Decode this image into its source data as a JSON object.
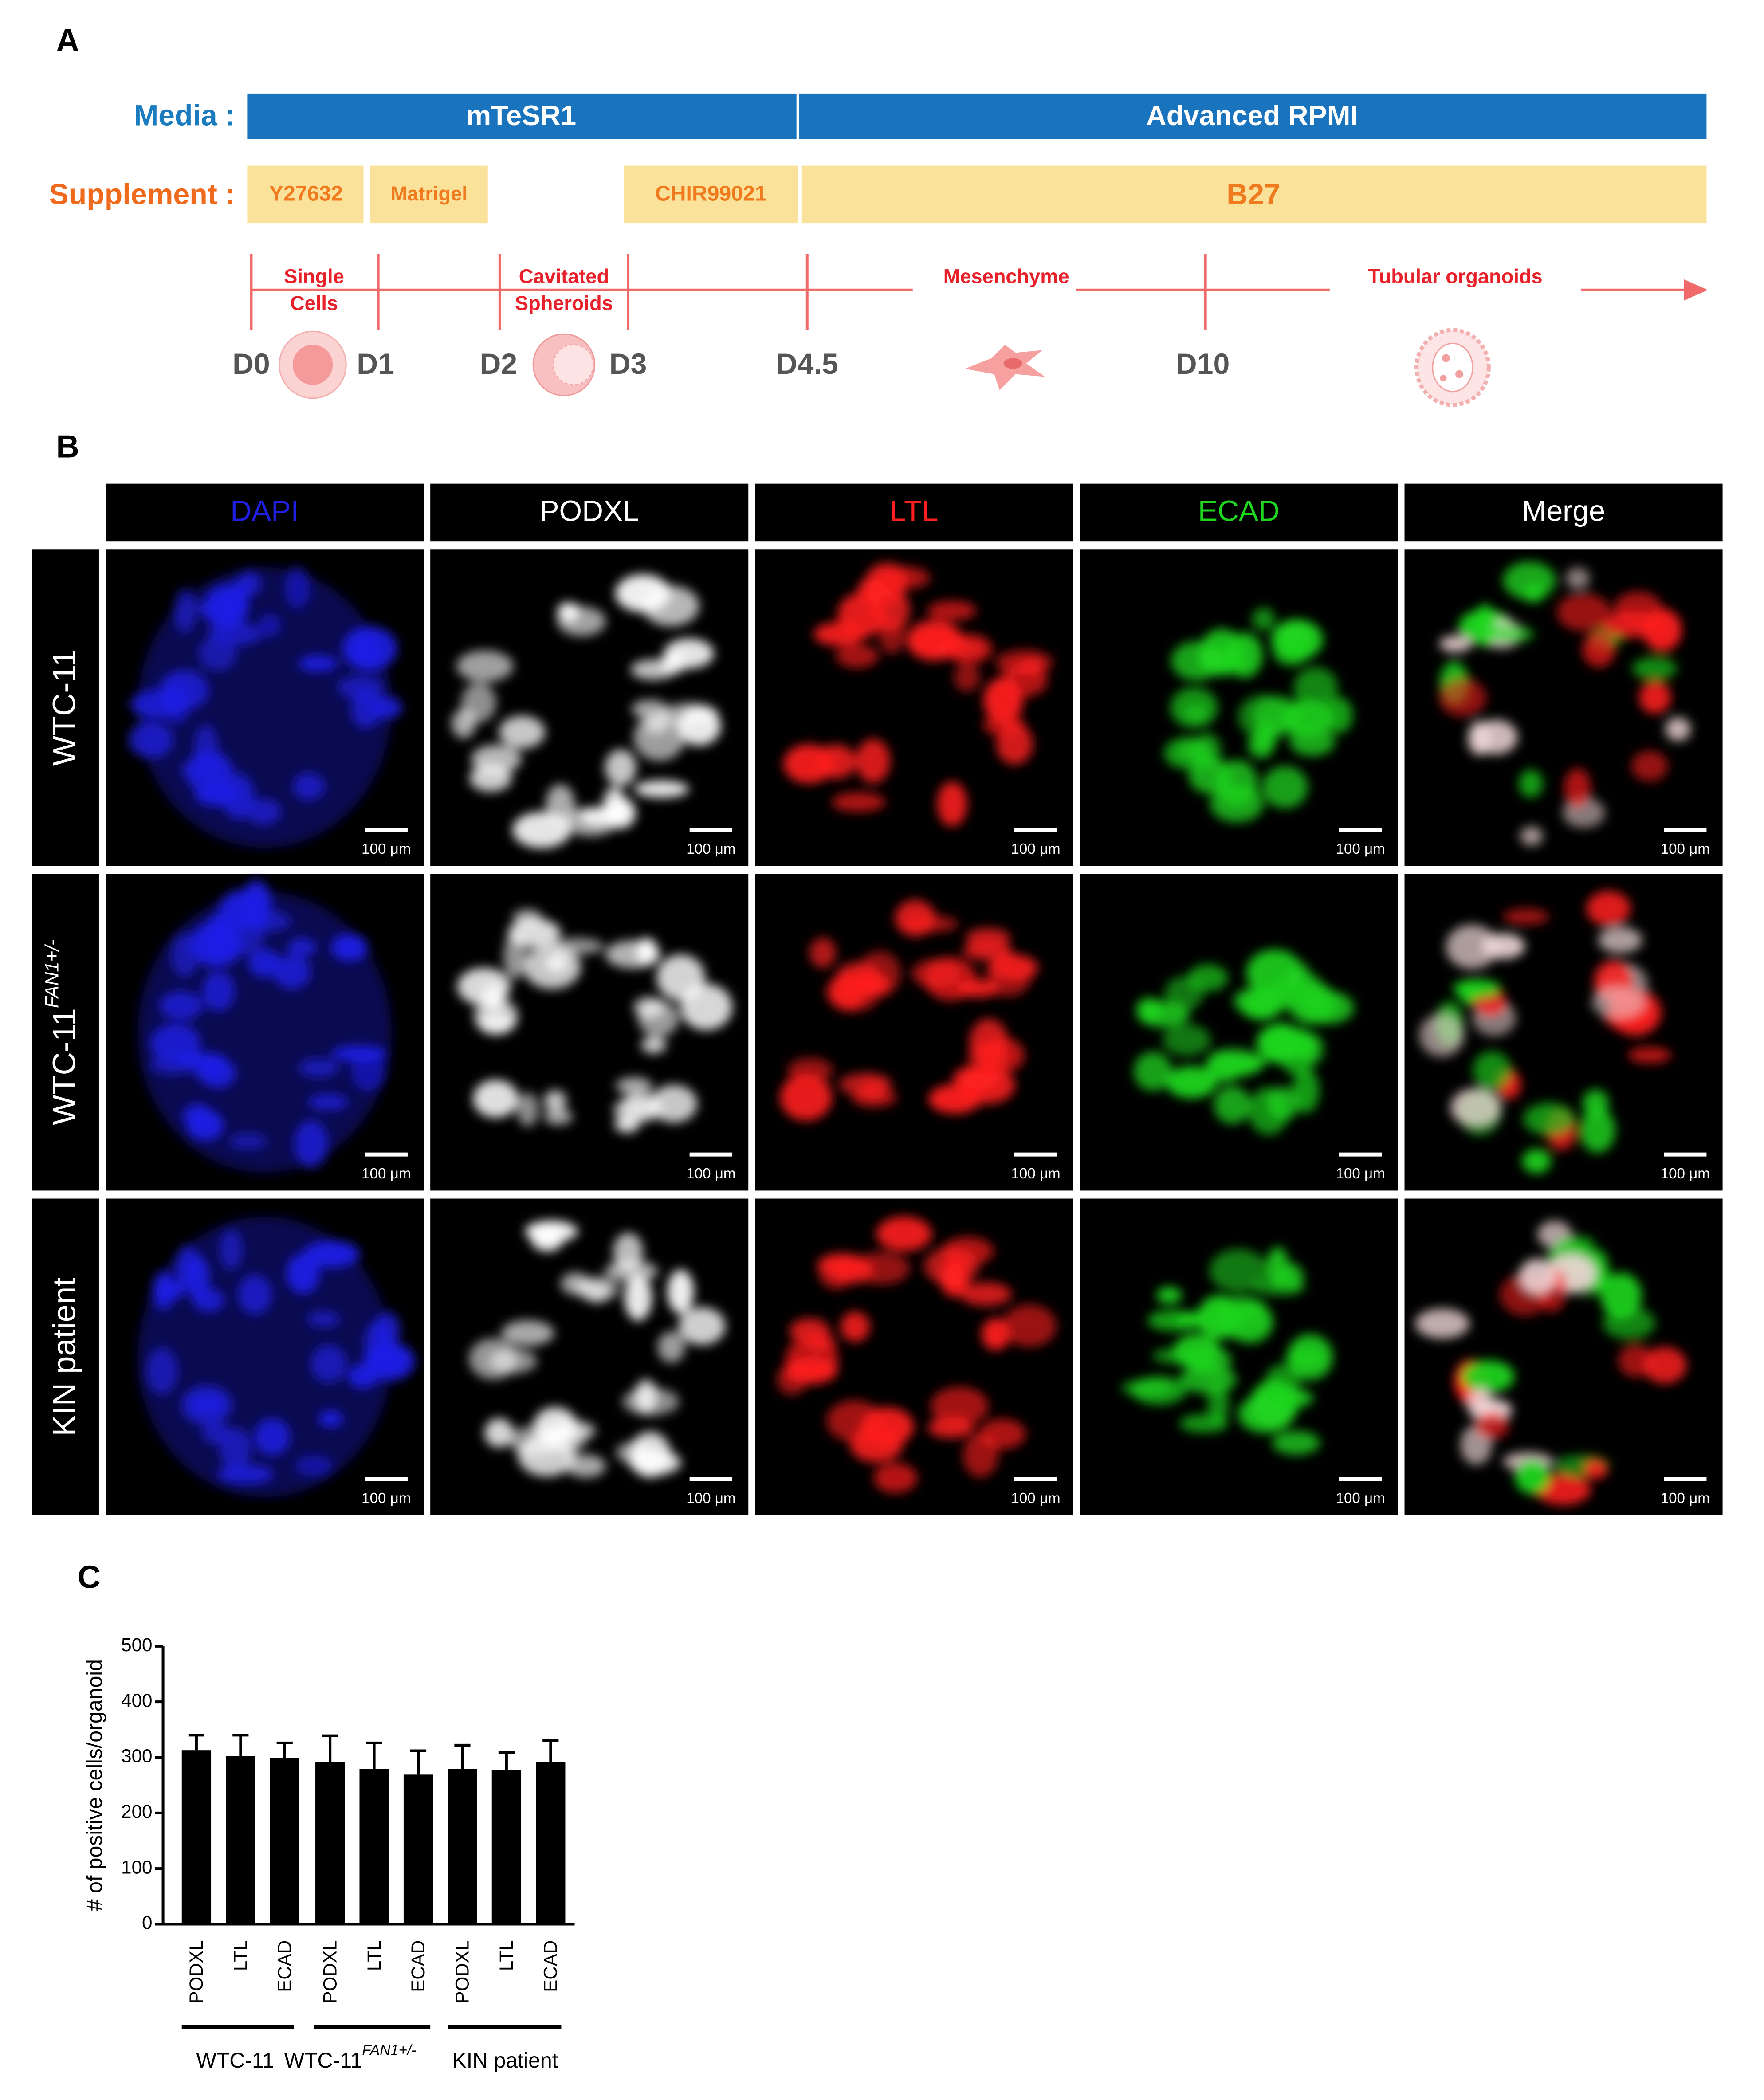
{
  "panel_a": {
    "label": "A",
    "media": {
      "label": "Media :",
      "segments": [
        "mTeSR1",
        "Advanced RPMI"
      ]
    },
    "supplement": {
      "label": "Supplement :",
      "items": [
        "Y27632",
        "Matrigel",
        "CHIR99021",
        "B27"
      ]
    },
    "stages": [
      {
        "lines": [
          "Single",
          "Cells"
        ]
      },
      {
        "lines": [
          "Cavitated",
          "Spheroids"
        ]
      },
      {
        "lines": [
          "Mesenchyme"
        ]
      },
      {
        "lines": [
          "Tubular organoids"
        ]
      }
    ],
    "days": [
      "D0",
      "D1",
      "D2",
      "D3",
      "D4.5",
      "D10"
    ]
  },
  "panel_b": {
    "label": "B",
    "columns": [
      {
        "name": "DAPI",
        "color": "#1f1fe6"
      },
      {
        "name": "PODXL",
        "color": "#ffffff"
      },
      {
        "name": "LTL",
        "color": "#ff1f1f"
      },
      {
        "name": "ECAD",
        "color": "#1fd61f"
      },
      {
        "name": "Merge",
        "color": "#ffffff"
      }
    ],
    "rows": [
      {
        "name": "WTC-11"
      },
      {
        "name": "WTC-11",
        "superscript": "FAN1+/-"
      },
      {
        "name": "KIN patient"
      }
    ],
    "scale_bar": "100 μm"
  },
  "chart_data": {
    "type": "bar",
    "panel_label": "C",
    "ylabel": "# of positive cells/organoid",
    "categories": [
      "PODXL",
      "LTL",
      "ECAD",
      "PODXL",
      "LTL",
      "ECAD",
      "PODXL",
      "LTL",
      "ECAD"
    ],
    "groups": [
      {
        "name": "WTC-11"
      },
      {
        "name": "WTC-11",
        "superscript": "FAN1+/-"
      },
      {
        "name": "KIN patient"
      }
    ],
    "values": [
      313,
      302,
      299,
      292,
      279,
      269,
      279,
      277,
      292
    ],
    "errors": [
      27,
      38,
      27,
      47,
      47,
      43,
      43,
      32,
      38
    ],
    "color": "#000000",
    "ylim": [
      0,
      500
    ],
    "yticks": [
      0,
      100,
      200,
      300,
      400,
      500
    ]
  }
}
